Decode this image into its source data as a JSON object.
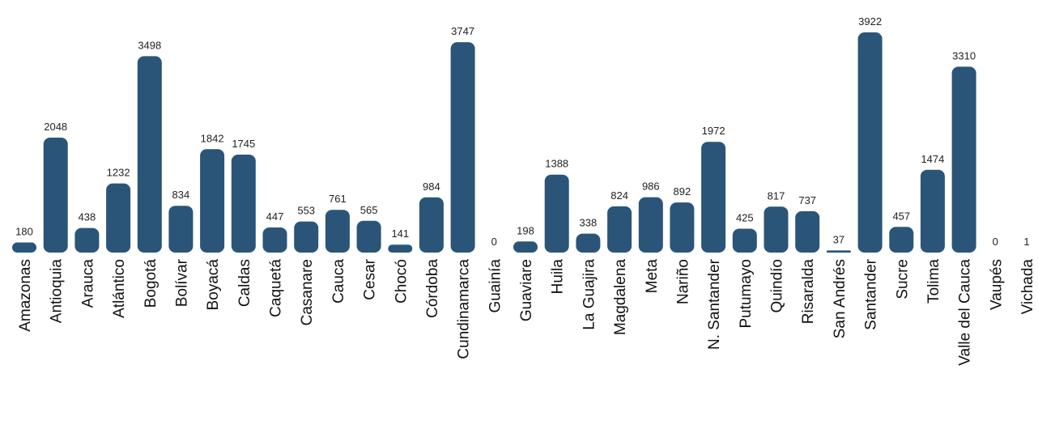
{
  "chart_data": {
    "type": "bar",
    "title": "",
    "xlabel": "",
    "ylabel": "",
    "grid": false,
    "ylim": [
      0,
      3922
    ],
    "bar_color": "#2a5578",
    "categories": [
      "Amazonas",
      "Antioquia",
      "Arauca",
      "Atlántico",
      "Bogotá",
      "Bolívar",
      "Boyacá",
      "Caldas",
      "Caquetá",
      "Casanare",
      "Cauca",
      "Cesar",
      "Chocó",
      "Córdoba",
      "Cundinamarca",
      "Guainía",
      "Guaviare",
      "Huila",
      "La Guajira",
      "Magdalena",
      "Meta",
      "Nariño",
      "N. Santander",
      "Putumayo",
      "Quindío",
      "Risaralda",
      "San Andrés",
      "Santander",
      "Sucre",
      "Tolima",
      "Valle del Cauca",
      "Vaupés",
      "Vichada"
    ],
    "values": [
      180,
      2048,
      438,
      1232,
      3498,
      834,
      1842,
      1745,
      447,
      553,
      761,
      565,
      141,
      984,
      3747,
      0,
      198,
      1388,
      338,
      824,
      986,
      892,
      1972,
      425,
      817,
      737,
      37,
      3922,
      457,
      1474,
      3310,
      0,
      1
    ]
  }
}
